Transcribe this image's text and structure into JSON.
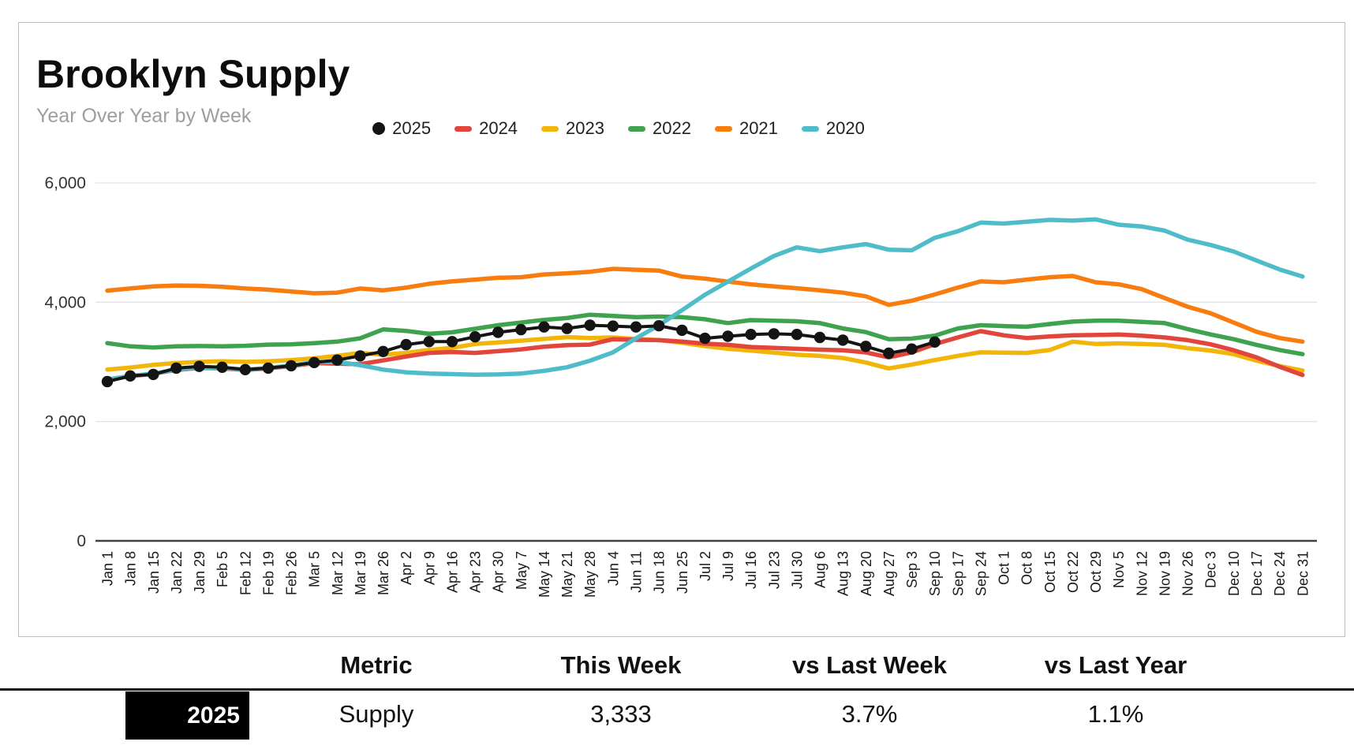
{
  "page": {
    "title": "Brooklyn Supply",
    "subtitle": "Year Over Year by Week"
  },
  "legend": {
    "items": [
      {
        "label": "2025",
        "color": "#141414",
        "marker": "circle"
      },
      {
        "label": "2024",
        "color": "#E2453C",
        "marker": "dash"
      },
      {
        "label": "2023",
        "color": "#F2B50A",
        "marker": "dash"
      },
      {
        "label": "2022",
        "color": "#3EA24E",
        "marker": "dash"
      },
      {
        "label": "2021",
        "color": "#F87D0E",
        "marker": "dash"
      },
      {
        "label": "2020",
        "color": "#4EBCC9",
        "marker": "dash"
      }
    ]
  },
  "chart_data": {
    "type": "line",
    "title": "Brooklyn Supply",
    "subtitle": "Year Over Year by Week",
    "xlabel": "",
    "ylabel": "",
    "ylim": [
      0,
      6000
    ],
    "yticks": [
      0,
      2000,
      4000,
      6000
    ],
    "grid": "horizontal",
    "legend_position": "top-center",
    "x_labels": [
      "Jan 1",
      "Jan 8",
      "Jan 15",
      "Jan 22",
      "Jan 29",
      "Feb 5",
      "Feb 12",
      "Feb 19",
      "Feb 26",
      "Mar 5",
      "Mar 12",
      "Mar 19",
      "Mar 26",
      "Apr 2",
      "Apr 9",
      "Apr 16",
      "Apr 23",
      "Apr 30",
      "May 7",
      "May 14",
      "May 21",
      "May 28",
      "Jun 4",
      "Jun 11",
      "Jun 18",
      "Jun 25",
      "Jul 2",
      "Jul 9",
      "Jul 16",
      "Jul 23",
      "Jul 30",
      "Aug 6",
      "Aug 13",
      "Aug 20",
      "Aug 27",
      "Sep 3",
      "Sep 10",
      "Sep 17",
      "Sep 24",
      "Oct 1",
      "Oct 8",
      "Oct 15",
      "Oct 22",
      "Oct 29",
      "Nov 5",
      "Nov 12",
      "Nov 19",
      "Nov 26",
      "Dec 3",
      "Dec 10",
      "Dec 17",
      "Dec 24",
      "Dec 31"
    ],
    "series": [
      {
        "name": "2021",
        "color": "#F87D0E",
        "marker": "none",
        "values": [
          4195,
          4230,
          4265,
          4280,
          4275,
          4260,
          4230,
          4210,
          4180,
          4150,
          4160,
          4230,
          4200,
          4245,
          4310,
          4350,
          4380,
          4410,
          4420,
          4465,
          4485,
          4510,
          4560,
          4545,
          4530,
          4430,
          4395,
          4345,
          4300,
          4265,
          4235,
          4200,
          4160,
          4100,
          3955,
          4025,
          4130,
          4245,
          4350,
          4335,
          4380,
          4420,
          4440,
          4335,
          4300,
          4220,
          4070,
          3925,
          3815,
          3660,
          3505,
          3400,
          3340
        ]
      },
      {
        "name": "2022",
        "color": "#3EA24E",
        "marker": "none",
        "values": [
          3315,
          3260,
          3240,
          3260,
          3265,
          3260,
          3270,
          3290,
          3295,
          3315,
          3340,
          3395,
          3545,
          3520,
          3470,
          3495,
          3555,
          3615,
          3660,
          3705,
          3735,
          3790,
          3770,
          3750,
          3760,
          3750,
          3715,
          3650,
          3700,
          3690,
          3680,
          3650,
          3560,
          3500,
          3380,
          3390,
          3440,
          3560,
          3615,
          3600,
          3590,
          3635,
          3675,
          3690,
          3690,
          3670,
          3650,
          3550,
          3460,
          3380,
          3285,
          3200,
          3130
        ]
      },
      {
        "name": "2023",
        "color": "#F2B50A",
        "marker": "none",
        "values": [
          2870,
          2905,
          2950,
          2980,
          3000,
          3010,
          3000,
          3010,
          3030,
          3060,
          3100,
          3150,
          3120,
          3150,
          3200,
          3235,
          3300,
          3325,
          3355,
          3385,
          3415,
          3400,
          3410,
          3385,
          3365,
          3320,
          3265,
          3220,
          3190,
          3155,
          3120,
          3100,
          3065,
          2990,
          2890,
          2955,
          3030,
          3100,
          3160,
          3155,
          3150,
          3200,
          3340,
          3300,
          3310,
          3300,
          3285,
          3230,
          3190,
          3130,
          3020,
          2930,
          2855
        ]
      },
      {
        "name": "2024",
        "color": "#E2453C",
        "marker": "none",
        "values": [
          2700,
          2760,
          2800,
          2865,
          2900,
          2890,
          2865,
          2890,
          2930,
          2980,
          2970,
          2960,
          3025,
          3090,
          3150,
          3165,
          3150,
          3180,
          3210,
          3255,
          3280,
          3290,
          3380,
          3370,
          3365,
          3340,
          3305,
          3285,
          3250,
          3235,
          3220,
          3205,
          3195,
          3160,
          3075,
          3160,
          3297,
          3410,
          3515,
          3445,
          3400,
          3425,
          3445,
          3450,
          3460,
          3440,
          3410,
          3365,
          3295,
          3195,
          3075,
          2920,
          2780
        ]
      },
      {
        "name": "2020",
        "color": "#4EBCC9",
        "marker": "none",
        "values": [
          2705,
          2765,
          2805,
          2870,
          2905,
          2895,
          2870,
          2895,
          2940,
          2995,
          3000,
          2945,
          2870,
          2825,
          2805,
          2795,
          2785,
          2790,
          2805,
          2850,
          2910,
          3020,
          3160,
          3395,
          3615,
          3865,
          4125,
          4345,
          4565,
          4775,
          4920,
          4855,
          4920,
          4975,
          4880,
          4870,
          5080,
          5190,
          5335,
          5320,
          5350,
          5380,
          5370,
          5390,
          5300,
          5270,
          5200,
          5050,
          4960,
          4850,
          4700,
          4550,
          4430
        ]
      },
      {
        "name": "2025",
        "color": "#141414",
        "marker": "circle",
        "values": [
          2670,
          2765,
          2790,
          2895,
          2925,
          2910,
          2870,
          2895,
          2935,
          2990,
          3030,
          3100,
          3175,
          3290,
          3340,
          3340,
          3420,
          3495,
          3540,
          3585,
          3560,
          3615,
          3600,
          3585,
          3605,
          3530,
          3395,
          3430,
          3460,
          3470,
          3460,
          3410,
          3365,
          3260,
          3145,
          3215,
          3333
        ]
      }
    ]
  },
  "table": {
    "headers": {
      "metric": "Metric",
      "this_week": "This Week",
      "vs_last_week": "vs Last Week",
      "vs_last_year": "vs Last Year"
    },
    "row": {
      "year": "2025",
      "metric": "Supply",
      "this_week": "3,333",
      "vs_last_week": "3.7%",
      "vs_last_year": "1.1%"
    }
  }
}
